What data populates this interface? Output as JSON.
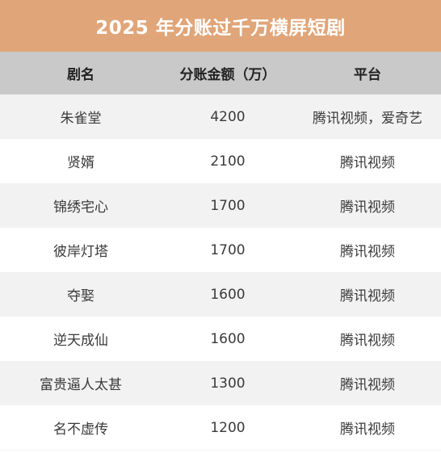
{
  "title": "2025 年分账过千万横屏短剧",
  "headers": {
    "name": "剧名",
    "amount": "分账金额（万）",
    "platform": "平台"
  },
  "rows": [
    {
      "name": "朱雀堂",
      "amount": "4200",
      "platform": "腾讯视频，爱奇艺"
    },
    {
      "name": "贤婿",
      "amount": "2100",
      "platform": "腾讯视频"
    },
    {
      "name": "锦绣宅心",
      "amount": "1700",
      "platform": "腾讯视频"
    },
    {
      "name": "彼岸灯塔",
      "amount": "1700",
      "platform": "腾讯视频"
    },
    {
      "name": "夺娶",
      "amount": "1600",
      "platform": "腾讯视频"
    },
    {
      "name": "逆天成仙",
      "amount": "1600",
      "platform": "腾讯视频"
    },
    {
      "name": "富贵逼人太甚",
      "amount": "1300",
      "platform": "腾讯视频"
    },
    {
      "name": "名不虚传",
      "amount": "1200",
      "platform": "腾讯视频"
    }
  ],
  "colors": {
    "title_bg": "#e0a578",
    "header_bg": "#c9c9c9",
    "stripe_bg": "#f2f2f2"
  }
}
